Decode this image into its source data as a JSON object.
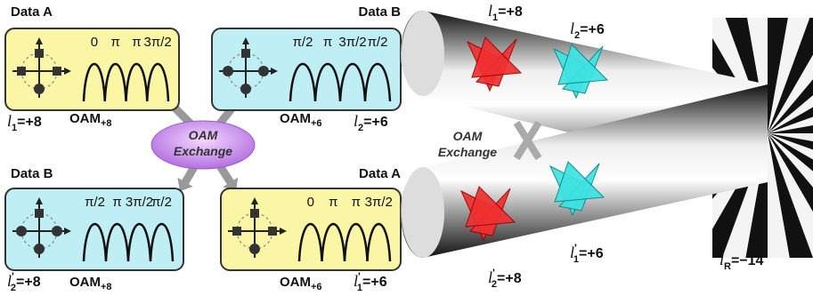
{
  "left": {
    "boxes": [
      {
        "header": "Data A",
        "phases": [
          "0",
          "π",
          "π",
          "3π/2"
        ],
        "oam": {
          "text": "OAM",
          "sub": "+8"
        },
        "l": {
          "base": "l",
          "sub": "1",
          "rest": "=+8"
        }
      },
      {
        "header": "Data B",
        "phases": [
          "π/2",
          "π",
          "3π/2",
          "π/2"
        ],
        "oam": {
          "text": "OAM",
          "sub": "+6"
        },
        "l": {
          "base": "l",
          "sub": "2",
          "rest": "=+6"
        }
      },
      {
        "header": "Data B",
        "phases": [
          "π/2",
          "π",
          "3π/2",
          "π/2"
        ],
        "oam": {
          "text": "OAM",
          "sub": "+8"
        },
        "l": {
          "base": "l",
          "sub": "2",
          "sup": "'",
          "rest": "=+8"
        }
      },
      {
        "header": "Data A",
        "phases": [
          "0",
          "π",
          "π",
          "3π/2"
        ],
        "oam": {
          "text": "OAM",
          "sub": "+6"
        },
        "l": {
          "base": "l",
          "sub": "1",
          "sup": "'",
          "rest": "=+6"
        }
      }
    ],
    "exchange": [
      "OAM",
      "Exchange"
    ]
  },
  "right": {
    "top_l1": {
      "base": "l",
      "sub": "1",
      "rest": "=+8"
    },
    "top_l2": {
      "base": "l",
      "sub": "2",
      "rest": "=+6"
    },
    "exchange": [
      "OAM",
      "Exchange"
    ],
    "bottom_l1": {
      "base": "l",
      "sub": "1",
      "sup": "'",
      "rest": "=+6"
    },
    "bottom_l2": {
      "base": "l",
      "sub": "2",
      "sup": "'",
      "rest": "=+8"
    },
    "lr": {
      "base": "l",
      "sub": "R",
      "rest": "=−14"
    }
  }
}
